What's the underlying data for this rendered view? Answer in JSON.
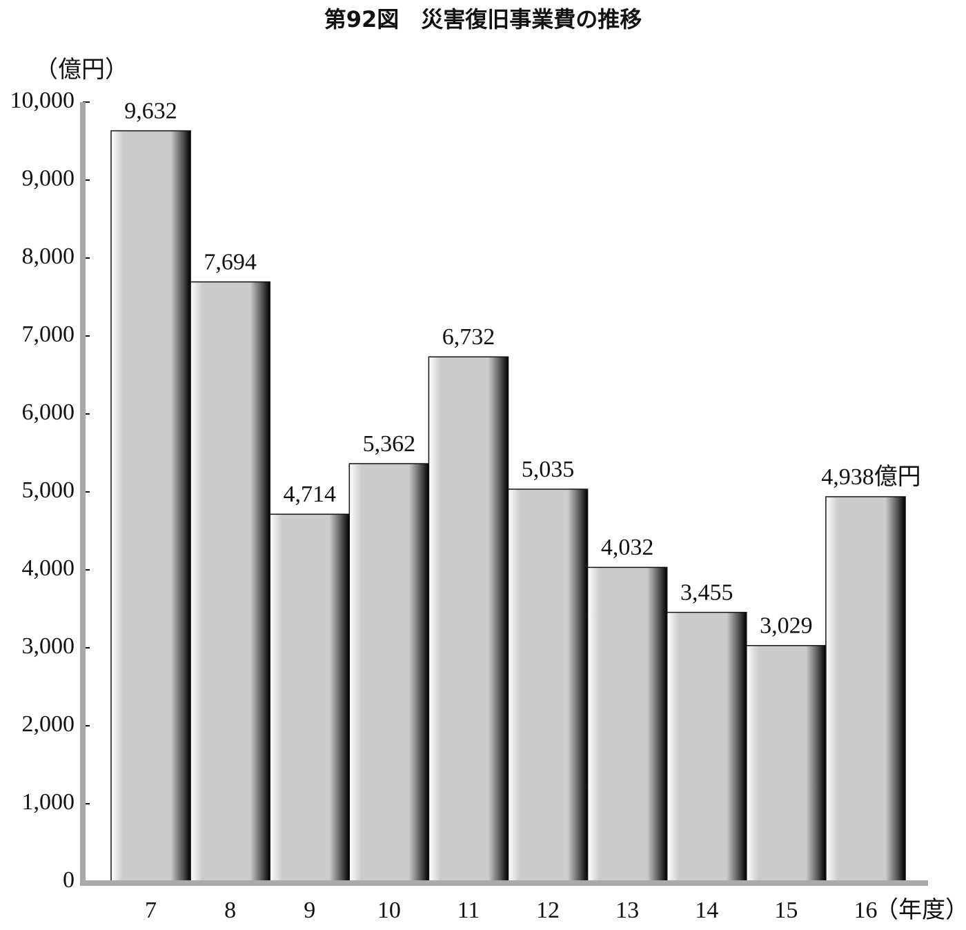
{
  "chart_data": {
    "type": "bar",
    "title": "第92図　災害復旧事業費の推移",
    "y_label": "（億円）",
    "x_label": "（年度）",
    "categories": [
      "7",
      "8",
      "9",
      "10",
      "11",
      "12",
      "13",
      "14",
      "15",
      "16"
    ],
    "values": [
      9632,
      7694,
      4714,
      5362,
      6732,
      5035,
      4032,
      3455,
      3029,
      4938
    ],
    "value_labels": [
      "9,632",
      "7,694",
      "4,714",
      "5,362",
      "6,732",
      "5,035",
      "4,032",
      "3,455",
      "3,029",
      "4,938億円"
    ],
    "color": "#cccccc",
    "ylim": [
      0,
      10000
    ],
    "yticks": [
      0,
      {
        "value": 1000,
        "label": "1,000"
      },
      {
        "value": 2000,
        "label": "2,000"
      },
      {
        "value": 3000,
        "label": "3,000"
      },
      {
        "value": 4000,
        "label": "4,000"
      },
      {
        "value": 5000,
        "label": "5,000"
      },
      {
        "value": 6000,
        "label": "6,000"
      },
      {
        "value": 7000,
        "label": "7,000"
      },
      {
        "value": 8000,
        "label": "8,000"
      },
      {
        "value": 9000,
        "label": "9,000"
      },
      {
        "value": 10000,
        "label": "10,000"
      }
    ]
  }
}
